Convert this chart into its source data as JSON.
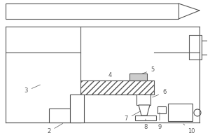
{
  "bg_color": "#ffffff",
  "line_color": "#555555",
  "lw": 0.8,
  "fig_w": 3.0,
  "fig_h": 2.0,
  "dpi": 100,
  "labels": [
    "2",
    "3",
    "4",
    "5",
    "6",
    "7",
    "8",
    "9",
    "10"
  ],
  "label_fs": 6.0
}
